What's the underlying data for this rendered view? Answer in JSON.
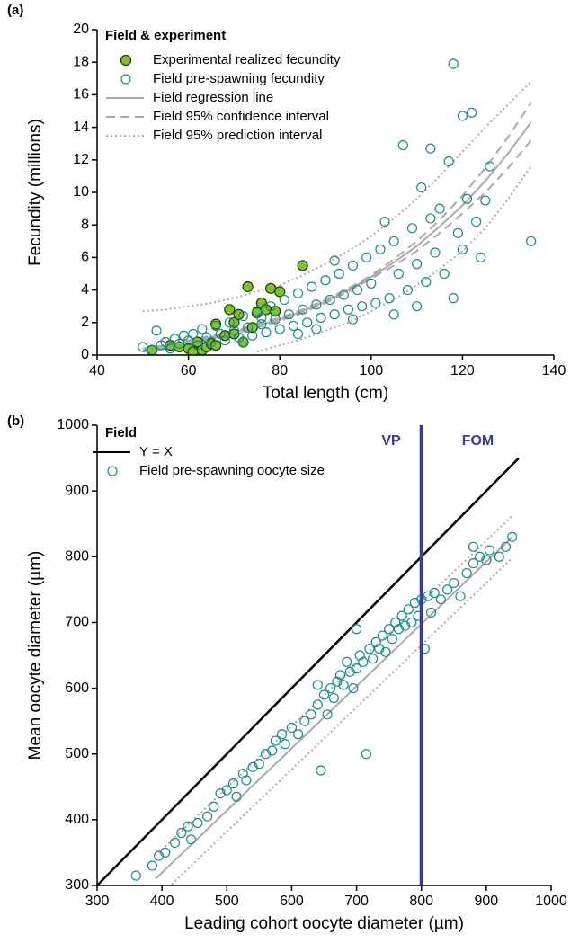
{
  "chart_data": [
    {
      "type": "scatter",
      "panel_label": "(a)",
      "xlabel": "Total length (cm)",
      "ylabel": "Fecundity (millions)",
      "xlim": [
        40,
        140
      ],
      "ylim": [
        0,
        20
      ],
      "xticks": [
        40,
        60,
        80,
        100,
        120,
        140
      ],
      "yticks": [
        0,
        2,
        4,
        6,
        8,
        10,
        12,
        14,
        16,
        18,
        20
      ],
      "legend_title": "Field & experiment",
      "series": [
        {
          "name": "Experimental realized fecundity",
          "style": "filled-marker",
          "color": "#7dc42a",
          "x": [
            52,
            56,
            58,
            60,
            61,
            62,
            63,
            64,
            65,
            66,
            66,
            68,
            69,
            70,
            71,
            72,
            73,
            74,
            75,
            76,
            77,
            78,
            80,
            85,
            79,
            70
          ],
          "values": [
            0.3,
            0.6,
            0.5,
            0.4,
            0.2,
            0.8,
            0.3,
            0.5,
            0.7,
            1.9,
            0.6,
            1.2,
            2.8,
            2.0,
            2.5,
            0.8,
            4.2,
            1.7,
            2.6,
            3.2,
            2.8,
            4.1,
            3.9,
            5.5,
            2.7,
            1.3
          ]
        },
        {
          "name": "Field pre-spawning fecundity",
          "style": "open-marker",
          "color": "#1a8a8a",
          "x": [
            50,
            52,
            53,
            54,
            55,
            56,
            57,
            58,
            59,
            60,
            61,
            62,
            63,
            64,
            65,
            66,
            67,
            68,
            69,
            70,
            71,
            72,
            73,
            74,
            75,
            76,
            77,
            78,
            79,
            80,
            81,
            82,
            83,
            84,
            85,
            86,
            87,
            88,
            89,
            90,
            91,
            92,
            93,
            94,
            95,
            96,
            97,
            98,
            99,
            100,
            101,
            102,
            103,
            104,
            105,
            106,
            107,
            108,
            109,
            110,
            111,
            112,
            113,
            114,
            115,
            116,
            117,
            118,
            119,
            120,
            121,
            122,
            123,
            124,
            125,
            126,
            135,
            105,
            110,
            113,
            118,
            120,
            92,
            88,
            96,
            84,
            76,
            72
          ],
          "values": [
            0.5,
            0.3,
            1.5,
            0.6,
            0.8,
            0.4,
            1.0,
            0.7,
            1.2,
            0.9,
            1.3,
            0.6,
            1.6,
            1.1,
            0.8,
            1.8,
            1.3,
            0.9,
            2.0,
            1.5,
            1.1,
            2.4,
            1.7,
            1.2,
            2.7,
            1.9,
            1.4,
            3.0,
            2.2,
            1.6,
            3.4,
            2.5,
            1.8,
            3.8,
            2.8,
            2.0,
            4.2,
            3.1,
            2.3,
            4.6,
            3.4,
            2.5,
            5.0,
            3.7,
            2.8,
            5.5,
            4.0,
            3.0,
            6.0,
            4.4,
            3.2,
            6.5,
            8.2,
            3.5,
            7.0,
            5.0,
            12.9,
            4.0,
            7.8,
            5.6,
            10.3,
            4.5,
            12.7,
            6.3,
            9.0,
            5.0,
            11.9,
            17.9,
            7.5,
            14.7,
            9.6,
            14.9,
            8.2,
            6.0,
            9.5,
            11.6,
            7.0,
            2.5,
            3.0,
            8.4,
            3.5,
            6.5,
            5.8,
            1.6,
            2.2,
            1.3,
            2.3,
            0.8
          ]
        },
        {
          "name": "Field regression line",
          "style": "solid",
          "color": "#aaaaaa",
          "x": [
            50,
            55,
            60,
            65,
            70,
            75,
            80,
            85,
            90,
            95,
            100,
            105,
            110,
            115,
            120,
            125,
            130,
            135
          ],
          "values": [
            0.3,
            0.5,
            0.8,
            1.1,
            1.4,
            1.8,
            2.2,
            2.7,
            3.3,
            4.0,
            4.8,
            5.7,
            6.7,
            7.9,
            9.2,
            10.7,
            12.4,
            14.3
          ]
        },
        {
          "name": "Field 95% confidence interval",
          "style": "dashed",
          "color": "#aaaaaa",
          "x": [
            50,
            55,
            60,
            65,
            70,
            75,
            80,
            85,
            90,
            95,
            100,
            105,
            110,
            115,
            120,
            125,
            130,
            135
          ],
          "upper": [
            0.4,
            0.6,
            0.9,
            1.2,
            1.5,
            1.9,
            2.3,
            2.8,
            3.4,
            4.1,
            4.9,
            5.9,
            7.0,
            8.3,
            9.8,
            11.5,
            13.4,
            15.5
          ],
          "lower": [
            0.2,
            0.4,
            0.7,
            1.0,
            1.3,
            1.7,
            2.1,
            2.6,
            3.2,
            3.9,
            4.7,
            5.5,
            6.4,
            7.5,
            8.7,
            10.0,
            11.5,
            13.2
          ]
        },
        {
          "name": "Field 95% prediction interval",
          "style": "dotted",
          "color": "#aaaaaa",
          "x": [
            50,
            55,
            60,
            65,
            70,
            75,
            80,
            85,
            90,
            95,
            100,
            105,
            110,
            115,
            120,
            125,
            130,
            135
          ],
          "upper": [
            2.7,
            2.8,
            3.0,
            3.2,
            3.5,
            3.9,
            4.3,
            4.9,
            5.6,
            6.4,
            7.3,
            8.4,
            9.6,
            11.0,
            12.5,
            14.0,
            15.4,
            16.8
          ],
          "lower": [
            null,
            null,
            null,
            null,
            null,
            0.2,
            0.6,
            1.0,
            1.5,
            2.0,
            2.7,
            3.4,
            4.3,
            5.3,
            6.4,
            7.8,
            9.6,
            11.6
          ]
        }
      ]
    },
    {
      "type": "scatter",
      "panel_label": "(b)",
      "xlabel": "Leading cohort oocyte diameter (µm)",
      "ylabel": "Mean oocyte diameter (µm)",
      "xlim": [
        300,
        1000
      ],
      "ylim": [
        300,
        1000
      ],
      "xticks": [
        300,
        400,
        500,
        600,
        700,
        800,
        900,
        1000
      ],
      "yticks": [
        300,
        400,
        500,
        600,
        700,
        800,
        900,
        1000
      ],
      "legend_title": "Field",
      "vline": {
        "value": 800,
        "color": "#3a3aa0",
        "labels": [
          "VP",
          "FOM"
        ]
      },
      "series": [
        {
          "style": "solid",
          "color": "#aaaaaa",
          "x": [
            390,
            940
          ],
          "values": [
            310,
            830
          ]
        },
        {
          "style": "dotted",
          "color": "#aaaaaa",
          "x": [
            390,
            940
          ],
          "upper": [
            345,
            862
          ],
          "lower": [
            278,
            798
          ]
        },
        {
          "name": "Y = X",
          "style": "solid",
          "color": "#000000",
          "x": [
            300,
            950
          ],
          "values": [
            300,
            950
          ]
        },
        {
          "name": "Field pre-spawning oocyte size",
          "style": "open-marker",
          "color": "#1a8a8a",
          "x": [
            360,
            385,
            395,
            405,
            420,
            430,
            440,
            445,
            455,
            470,
            480,
            490,
            500,
            510,
            515,
            525,
            530,
            540,
            550,
            560,
            570,
            575,
            585,
            590,
            600,
            610,
            620,
            630,
            640,
            645,
            650,
            655,
            660,
            665,
            670,
            675,
            680,
            685,
            690,
            695,
            700,
            705,
            710,
            715,
            720,
            725,
            730,
            735,
            740,
            745,
            750,
            755,
            760,
            765,
            770,
            775,
            780,
            785,
            790,
            795,
            800,
            805,
            810,
            815,
            820,
            830,
            840,
            850,
            860,
            870,
            880,
            890,
            900,
            905,
            920,
            930,
            940,
            880,
            700,
            640
          ],
          "values": [
            315,
            330,
            345,
            350,
            365,
            380,
            390,
            370,
            395,
            405,
            420,
            440,
            445,
            455,
            435,
            470,
            460,
            480,
            485,
            500,
            505,
            520,
            530,
            515,
            540,
            530,
            550,
            560,
            575,
            475,
            590,
            560,
            600,
            585,
            610,
            620,
            605,
            640,
            625,
            600,
            630,
            650,
            640,
            500,
            660,
            645,
            670,
            660,
            680,
            655,
            690,
            675,
            700,
            690,
            710,
            695,
            720,
            700,
            730,
            710,
            735,
            660,
            740,
            715,
            745,
            735,
            750,
            760,
            740,
            775,
            790,
            800,
            795,
            810,
            800,
            815,
            830,
            815,
            690,
            605
          ]
        }
      ]
    }
  ]
}
